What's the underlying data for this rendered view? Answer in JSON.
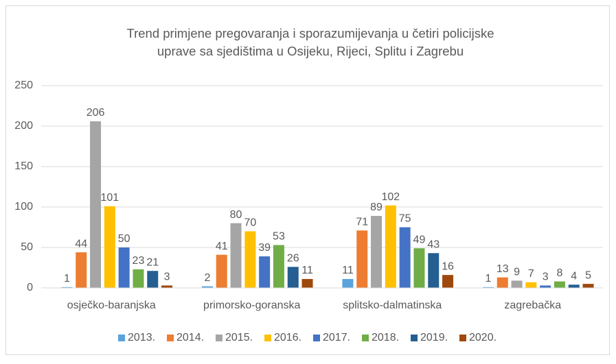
{
  "chart_data": {
    "type": "bar",
    "title": [
      "Trend primjene pregovaranja i sporazumijevanja u četiri policijske",
      "uprave sa sjedištima u Osijeku, Rijeci, Splitu i Zagrebu"
    ],
    "categories": [
      "osječko-baranjska",
      "primorsko-goranska",
      "splitsko-dalmatinska",
      "zagrebačka"
    ],
    "series": [
      {
        "name": "2013.",
        "color": "#5ba3dc",
        "values": [
          1,
          2,
          11,
          1
        ]
      },
      {
        "name": "2014.",
        "color": "#ed7d31",
        "values": [
          44,
          41,
          71,
          13
        ]
      },
      {
        "name": "2015.",
        "color": "#a5a5a5",
        "values": [
          206,
          80,
          89,
          9
        ]
      },
      {
        "name": "2016.",
        "color": "#ffc000",
        "values": [
          101,
          70,
          102,
          7
        ]
      },
      {
        "name": "2017.",
        "color": "#4472c4",
        "values": [
          50,
          39,
          75,
          3
        ]
      },
      {
        "name": "2018.",
        "color": "#70ad47",
        "values": [
          23,
          53,
          49,
          8
        ]
      },
      {
        "name": "2019.",
        "color": "#255e91",
        "values": [
          21,
          26,
          43,
          4
        ]
      },
      {
        "name": "2020.",
        "color": "#9e480e",
        "values": [
          3,
          11,
          16,
          5
        ]
      }
    ],
    "ylim": [
      0,
      250
    ],
    "yticks": [
      0,
      50,
      100,
      150,
      200,
      250
    ],
    "grid": true,
    "legend": "bottom"
  }
}
